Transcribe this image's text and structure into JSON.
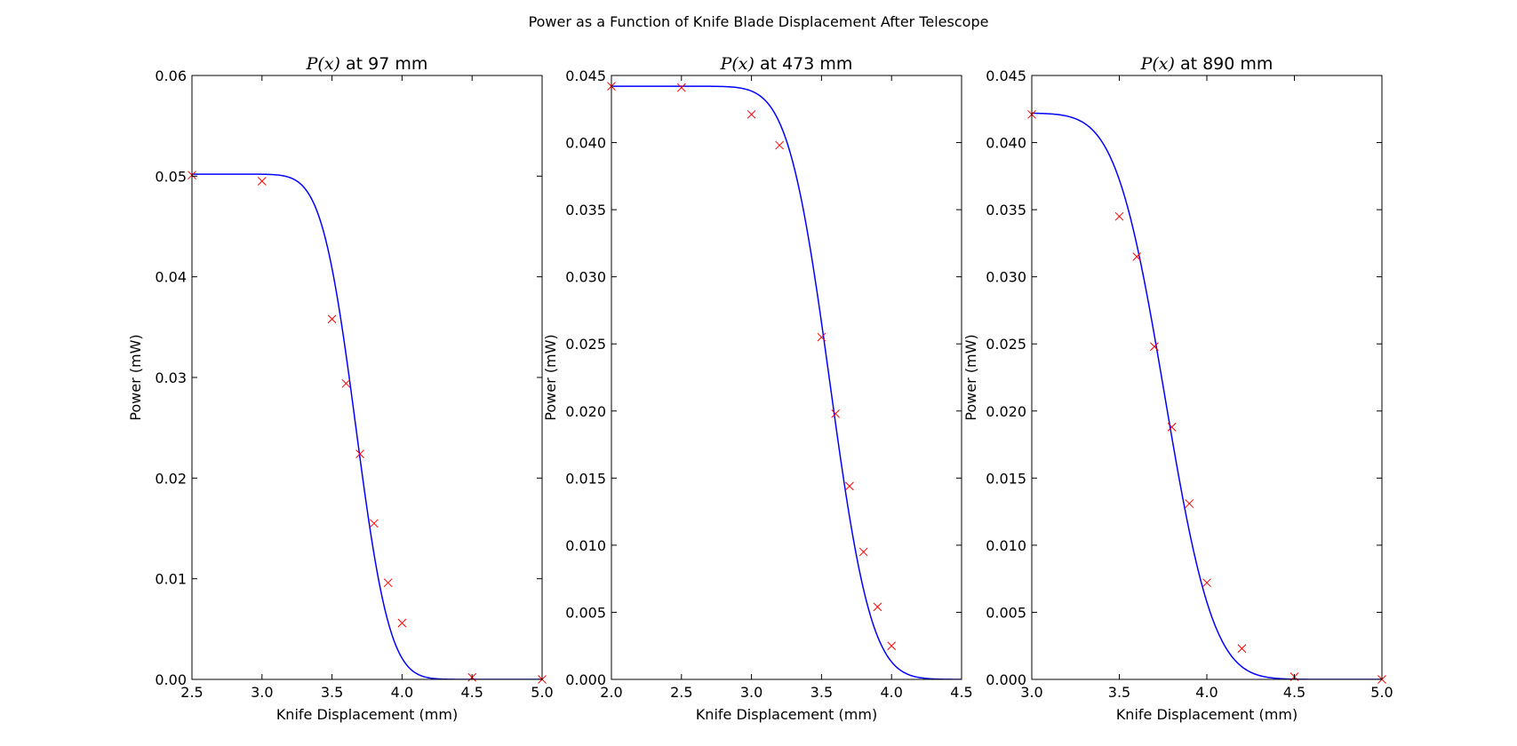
{
  "figure": {
    "title": "Power as a Function of Knife Blade Displacement After Telescope"
  },
  "colors": {
    "fit_line": "#0000ff",
    "data_marker": "#ff0000",
    "axes": "#000000"
  },
  "chart_data": [
    {
      "type": "scatter",
      "title_math": "P(x)",
      "title_text": " at 97 mm",
      "xlabel": "Knife Displacement (mm)",
      "ylabel": "Power (mW)",
      "xlim": [
        2.5,
        5.0
      ],
      "ylim": [
        0.0,
        0.06
      ],
      "xticks": [
        2.5,
        3.0,
        3.5,
        4.0,
        4.5,
        5.0
      ],
      "xtick_labels": [
        "2.5",
        "3.0",
        "3.5",
        "4.0",
        "4.5",
        "5.0"
      ],
      "yticks": [
        0.0,
        0.01,
        0.02,
        0.03,
        0.04,
        0.05,
        0.06
      ],
      "ytick_labels": [
        "0.00",
        "0.01",
        "0.02",
        "0.03",
        "0.04",
        "0.05",
        "0.06"
      ],
      "grid": false,
      "series": [
        {
          "kind": "measured",
          "marker": "x",
          "x": [
            2.5,
            3.0,
            3.5,
            3.6,
            3.7,
            3.8,
            3.9,
            4.0,
            4.5,
            5.0
          ],
          "y": [
            0.0501,
            0.0495,
            0.0358,
            0.0294,
            0.0224,
            0.0155,
            0.0096,
            0.0056,
            0.0002,
            0.0
          ]
        },
        {
          "kind": "fit",
          "model": "erfc",
          "amplitude": 0.0502,
          "center": 3.67,
          "width": 0.27
        }
      ]
    },
    {
      "type": "scatter",
      "title_math": "P(x)",
      "title_text": " at 473 mm",
      "xlabel": "Knife Displacement (mm)",
      "ylabel": "Power (mW)",
      "xlim": [
        2.0,
        4.5
      ],
      "ylim": [
        0.0,
        0.045
      ],
      "xticks": [
        2.0,
        2.5,
        3.0,
        3.5,
        4.0,
        4.5
      ],
      "xtick_labels": [
        "2.0",
        "2.5",
        "3.0",
        "3.5",
        "4.0",
        "4.5"
      ],
      "yticks": [
        0.0,
        0.005,
        0.01,
        0.015,
        0.02,
        0.025,
        0.03,
        0.035,
        0.04,
        0.045
      ],
      "ytick_labels": [
        "0.000",
        "0.005",
        "0.010",
        "0.015",
        "0.020",
        "0.025",
        "0.030",
        "0.035",
        "0.040",
        "0.045"
      ],
      "grid": false,
      "series": [
        {
          "kind": "measured",
          "marker": "x",
          "x": [
            2.0,
            2.5,
            3.0,
            3.2,
            3.5,
            3.6,
            3.7,
            3.8,
            3.9,
            4.0
          ],
          "y": [
            0.0442,
            0.0441,
            0.0421,
            0.0398,
            0.0255,
            0.0198,
            0.0144,
            0.0095,
            0.0054,
            0.0025
          ]
        },
        {
          "kind": "fit",
          "model": "erfc",
          "amplitude": 0.0442,
          "center": 3.56,
          "width": 0.33
        }
      ]
    },
    {
      "type": "scatter",
      "title_math": "P(x)",
      "title_text": " at 890 mm",
      "xlabel": "Knife Displacement (mm)",
      "ylabel": "Power (mW)",
      "xlim": [
        3.0,
        5.0
      ],
      "ylim": [
        0.0,
        0.045
      ],
      "xticks": [
        3.0,
        3.5,
        4.0,
        4.5,
        5.0
      ],
      "xtick_labels": [
        "3.0",
        "3.5",
        "4.0",
        "4.5",
        "5.0"
      ],
      "yticks": [
        0.0,
        0.005,
        0.01,
        0.015,
        0.02,
        0.025,
        0.03,
        0.035,
        0.04,
        0.045
      ],
      "ytick_labels": [
        "0.000",
        "0.005",
        "0.010",
        "0.015",
        "0.020",
        "0.025",
        "0.030",
        "0.035",
        "0.040",
        "0.045"
      ],
      "grid": false,
      "series": [
        {
          "kind": "measured",
          "marker": "x",
          "x": [
            3.0,
            3.5,
            3.6,
            3.7,
            3.8,
            3.9,
            4.0,
            4.2,
            4.5,
            5.0
          ],
          "y": [
            0.0421,
            0.0345,
            0.0315,
            0.0248,
            0.0188,
            0.0131,
            0.0072,
            0.0023,
            0.0002,
            0.0
          ]
        },
        {
          "kind": "fit",
          "model": "erfc",
          "amplitude": 0.0422,
          "center": 3.76,
          "width": 0.31
        }
      ]
    }
  ]
}
